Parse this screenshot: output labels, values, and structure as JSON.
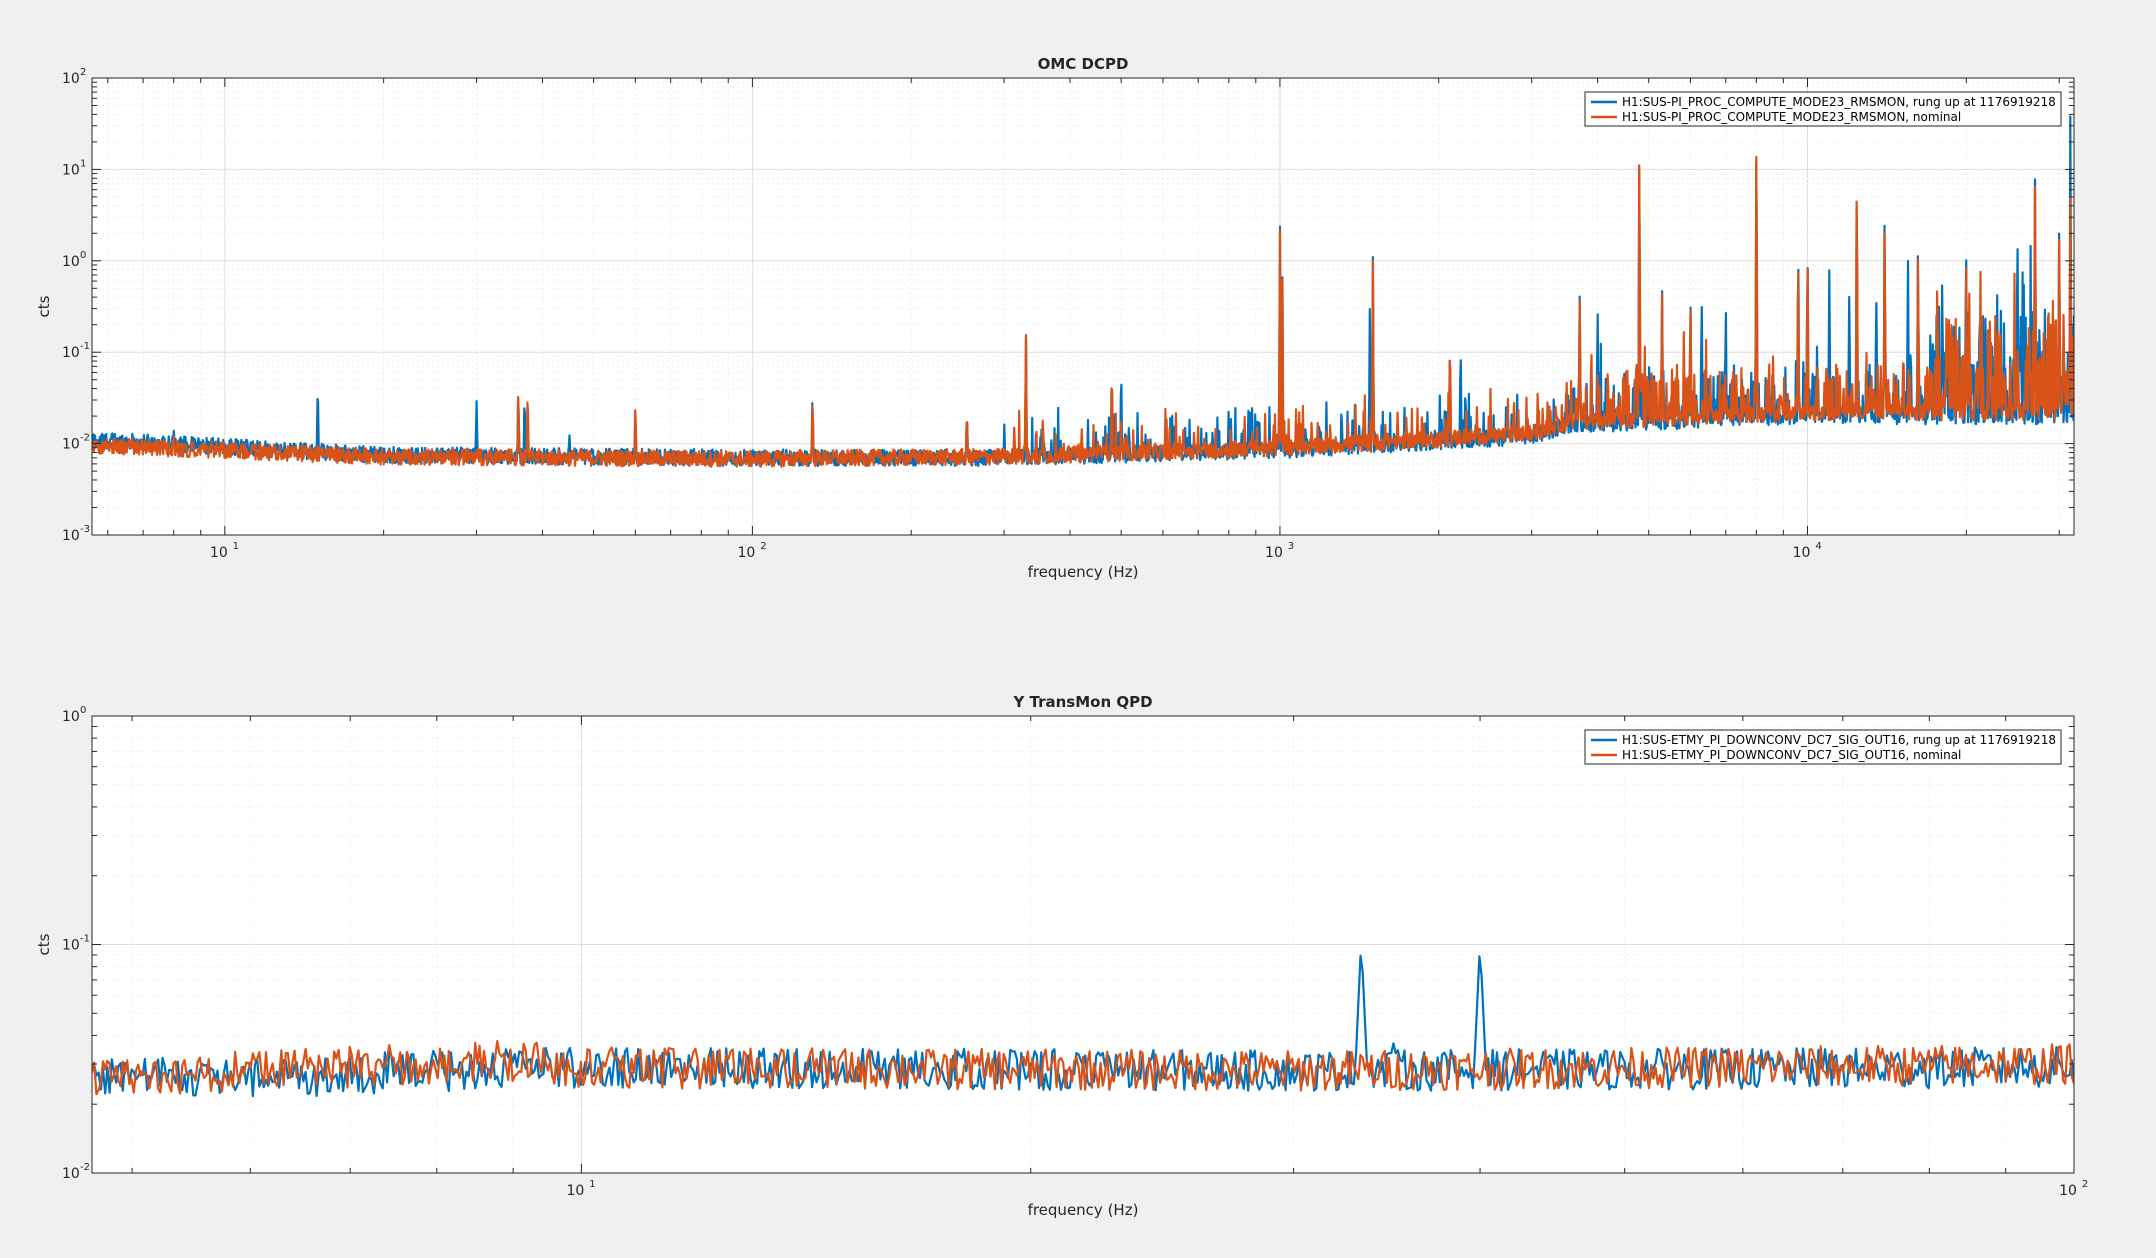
{
  "chart_data": [
    {
      "type": "line",
      "title": "OMC DCPD",
      "xlabel": "frequency (Hz)",
      "ylabel": "cts",
      "xscale": "log",
      "yscale": "log",
      "xlim": [
        5.6,
        32000
      ],
      "ylim": [
        0.001,
        100
      ],
      "xticks": [
        10,
        100,
        1000,
        10000
      ],
      "yticks": [
        0.001,
        0.01,
        0.1,
        1,
        10,
        100
      ],
      "grid": "on (major and minor)",
      "legend_position": "top-right",
      "series": [
        {
          "name": "H1:SUS-PI_PROC_COMPUTE_MODE23_RMSMON, rung up at 1176919218",
          "color": "#0072bd",
          "baseline": [
            [
              5.6,
              0.011
            ],
            [
              20,
              0.0075
            ],
            [
              100,
              0.007
            ],
            [
              300,
              0.007
            ],
            [
              1000,
              0.0085
            ],
            [
              3000,
              0.012
            ],
            [
              3500,
              0.016
            ],
            [
              10000,
              0.02
            ],
            [
              32000,
              0.02
            ]
          ],
          "peaks": [
            [
              7.5,
              0.011
            ],
            [
              8,
              0.014
            ],
            [
              15,
              0.055
            ],
            [
              30,
              0.033
            ],
            [
              36,
              0.045
            ],
            [
              37,
              0.04
            ],
            [
              45,
              0.013
            ],
            [
              60,
              0.028
            ],
            [
              130,
              0.038
            ],
            [
              255,
              0.025
            ],
            [
              330,
              0.19
            ],
            [
              480,
              0.08
            ],
            [
              500,
              0.085
            ],
            [
              1000,
              2.5
            ],
            [
              1010,
              2.2
            ],
            [
              1500,
              1.2
            ],
            [
              1480,
              0.3
            ],
            [
              2100,
              0.18
            ],
            [
              2200,
              0.15
            ],
            [
              3700,
              0.45
            ],
            [
              4000,
              0.4
            ],
            [
              4800,
              30
            ],
            [
              5300,
              0.6
            ],
            [
              6000,
              0.5
            ],
            [
              6300,
              0.45
            ],
            [
              7000,
              0.4
            ],
            [
              8000,
              30
            ],
            [
              9600,
              2.5
            ],
            [
              10000,
              1.8
            ],
            [
              11000,
              0.8
            ],
            [
              12000,
              0.6
            ],
            [
              12400,
              15
            ],
            [
              13500,
              0.6
            ],
            [
              14000,
              5
            ],
            [
              15500,
              1.5
            ],
            [
              16200,
              2.0
            ],
            [
              18000,
              0.8
            ],
            [
              20000,
              1.5
            ],
            [
              25000,
              4
            ],
            [
              27000,
              15
            ],
            [
              30000,
              3
            ],
            [
              31500,
              100
            ]
          ]
        },
        {
          "name": "H1:SUS-PI_PROC_COMPUTE_MODE23_RMSMON, nominal",
          "color": "#d95319",
          "baseline": [
            [
              5.6,
              0.0095
            ],
            [
              20,
              0.0072
            ],
            [
              100,
              0.0068
            ],
            [
              300,
              0.0072
            ],
            [
              1000,
              0.009
            ],
            [
              3000,
              0.013
            ],
            [
              3500,
              0.017
            ],
            [
              10000,
              0.022
            ],
            [
              32000,
              0.022
            ]
          ],
          "peaks": [
            [
              8,
              0.012
            ],
            [
              36,
              0.048
            ],
            [
              37.5,
              0.047
            ],
            [
              60,
              0.03
            ],
            [
              130,
              0.035
            ],
            [
              255,
              0.026
            ],
            [
              330,
              0.2
            ],
            [
              480,
              0.085
            ],
            [
              1000,
              2.3
            ],
            [
              1010,
              2.0
            ],
            [
              1500,
              1.1
            ],
            [
              2100,
              0.17
            ],
            [
              3700,
              0.4
            ],
            [
              4800,
              35
            ],
            [
              5300,
              0.55
            ],
            [
              6000,
              0.45
            ],
            [
              8000,
              35
            ],
            [
              9600,
              2.2
            ],
            [
              10000,
              1.7
            ],
            [
              12400,
              17
            ],
            [
              14000,
              4
            ],
            [
              16200,
              1.8
            ],
            [
              20000,
              1.2
            ],
            [
              27000,
              12
            ],
            [
              30000,
              2.5
            ],
            [
              31500,
              10
            ]
          ]
        }
      ]
    },
    {
      "type": "line",
      "title": "Y TransMon QPD",
      "xlabel": "frequency (Hz)",
      "ylabel": "cts",
      "xscale": "log",
      "yscale": "log",
      "xlim": [
        4.7,
        100
      ],
      "ylim": [
        0.01,
        1
      ],
      "xticks": [
        10,
        100
      ],
      "yticks": [
        0.01,
        0.1,
        1
      ],
      "grid": "on (major and minor)",
      "legend_position": "top-right",
      "series": [
        {
          "name": "H1:SUS-ETMY_PI_DOWNCONV_DC7_SIG_OUT16, rung up at 1176919218",
          "color": "#0072bd",
          "baseline": [
            [
              4.7,
              0.027
            ],
            [
              6,
              0.026
            ],
            [
              8,
              0.028
            ],
            [
              10,
              0.029
            ],
            [
              30,
              0.028
            ],
            [
              100,
              0.029
            ]
          ],
          "peaks": [
            [
              33.3,
              0.105
            ],
            [
              40,
              0.102
            ],
            [
              35,
              0.037
            ]
          ]
        },
        {
          "name": "H1:SUS-ETMY_PI_DOWNCONV_DC7_SIG_OUT16, nominal",
          "color": "#d95319",
          "baseline": [
            [
              4.7,
              0.026
            ],
            [
              6,
              0.028
            ],
            [
              9,
              0.031
            ],
            [
              10,
              0.029
            ],
            [
              30,
              0.028
            ],
            [
              100,
              0.03
            ]
          ],
          "peaks": []
        }
      ]
    }
  ]
}
